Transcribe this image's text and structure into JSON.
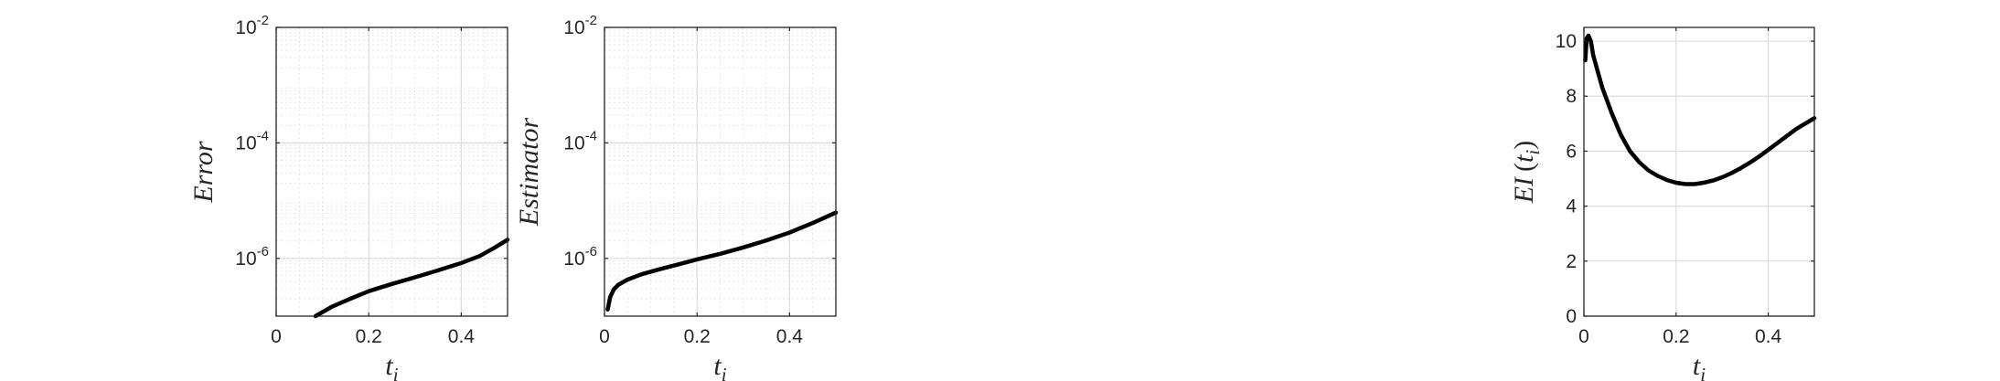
{
  "chart_data": [
    {
      "type": "line",
      "xlabel": "t",
      "xlabel_sub": "i",
      "ylabel": "Error",
      "yscale": "log",
      "xlim": [
        0,
        0.5
      ],
      "ylim": [
        1e-07,
        0.01
      ],
      "grid": true,
      "minor_grid": true,
      "xticks": [
        {
          "value": 0,
          "label": "0"
        },
        {
          "value": 0.2,
          "label": "0.2"
        },
        {
          "value": 0.4,
          "label": "0.4"
        }
      ],
      "yticks": [
        {
          "value": 1e-06,
          "base": "10",
          "exp": "-6"
        },
        {
          "value": 0.0001,
          "base": "10",
          "exp": "-4"
        },
        {
          "value": 0.01,
          "base": "10",
          "exp": "-2"
        }
      ],
      "series": [
        {
          "color": "#000000",
          "x": [
            0.085,
            0.12,
            0.16,
            0.2,
            0.25,
            0.3,
            0.35,
            0.4,
            0.44,
            0.47,
            0.5
          ],
          "y": [
            1e-07,
            1.45e-07,
            2e-07,
            2.7e-07,
            3.6e-07,
            4.7e-07,
            6.2e-07,
            8.3e-07,
            1.1e-06,
            1.5e-06,
            2.1e-06
          ]
        }
      ]
    },
    {
      "type": "line",
      "xlabel": "t",
      "xlabel_sub": "i",
      "ylabel": "Estimator",
      "yscale": "log",
      "xlim": [
        0,
        0.5
      ],
      "ylim": [
        1e-07,
        0.01
      ],
      "grid": true,
      "minor_grid": true,
      "xticks": [
        {
          "value": 0,
          "label": "0"
        },
        {
          "value": 0.2,
          "label": "0.2"
        },
        {
          "value": 0.4,
          "label": "0.4"
        }
      ],
      "yticks": [
        {
          "value": 1e-06,
          "base": "10",
          "exp": "-6"
        },
        {
          "value": 0.0001,
          "base": "10",
          "exp": "-4"
        },
        {
          "value": 0.01,
          "base": "10",
          "exp": "-2"
        }
      ],
      "series": [
        {
          "color": "#000000",
          "x": [
            0.007,
            0.012,
            0.02,
            0.03,
            0.05,
            0.08,
            0.12,
            0.16,
            0.2,
            0.25,
            0.3,
            0.35,
            0.4,
            0.45,
            0.5
          ],
          "y": [
            1.3e-07,
            2.1e-07,
            2.9e-07,
            3.5e-07,
            4.3e-07,
            5.3e-07,
            6.5e-07,
            7.9e-07,
            9.6e-07,
            1.2e-06,
            1.55e-06,
            2.05e-06,
            2.8e-06,
            4.1e-06,
            6.2e-06
          ]
        }
      ]
    },
    {
      "type": "line",
      "xlabel": "t",
      "xlabel_sub": "i",
      "ylabel": "EI",
      "ylabel_arg": "t",
      "ylabel_arg_sub": "i",
      "yscale": "linear",
      "xlim": [
        0,
        0.5
      ],
      "ylim": [
        0,
        10.5
      ],
      "grid": true,
      "minor_grid": false,
      "xticks": [
        {
          "value": 0,
          "label": "0"
        },
        {
          "value": 0.2,
          "label": "0.2"
        },
        {
          "value": 0.4,
          "label": "0.4"
        }
      ],
      "yticks": [
        {
          "value": 0,
          "label": "0"
        },
        {
          "value": 2,
          "label": "2"
        },
        {
          "value": 4,
          "label": "4"
        },
        {
          "value": 6,
          "label": "6"
        },
        {
          "value": 8,
          "label": "8"
        },
        {
          "value": 10,
          "label": "10"
        }
      ],
      "series": [
        {
          "color": "#000000",
          "x": [
            0.003,
            0.006,
            0.01,
            0.015,
            0.02,
            0.03,
            0.04,
            0.06,
            0.08,
            0.1,
            0.12,
            0.14,
            0.16,
            0.18,
            0.2,
            0.22,
            0.24,
            0.26,
            0.28,
            0.3,
            0.32,
            0.34,
            0.36,
            0.38,
            0.4,
            0.42,
            0.44,
            0.46,
            0.48,
            0.5
          ],
          "y": [
            9.3,
            10.1,
            10.2,
            10.0,
            9.5,
            8.9,
            8.3,
            7.4,
            6.6,
            6.0,
            5.6,
            5.3,
            5.1,
            4.95,
            4.85,
            4.8,
            4.8,
            4.85,
            4.93,
            5.05,
            5.2,
            5.38,
            5.58,
            5.8,
            6.05,
            6.3,
            6.55,
            6.8,
            7.0,
            7.2
          ]
        }
      ]
    }
  ]
}
